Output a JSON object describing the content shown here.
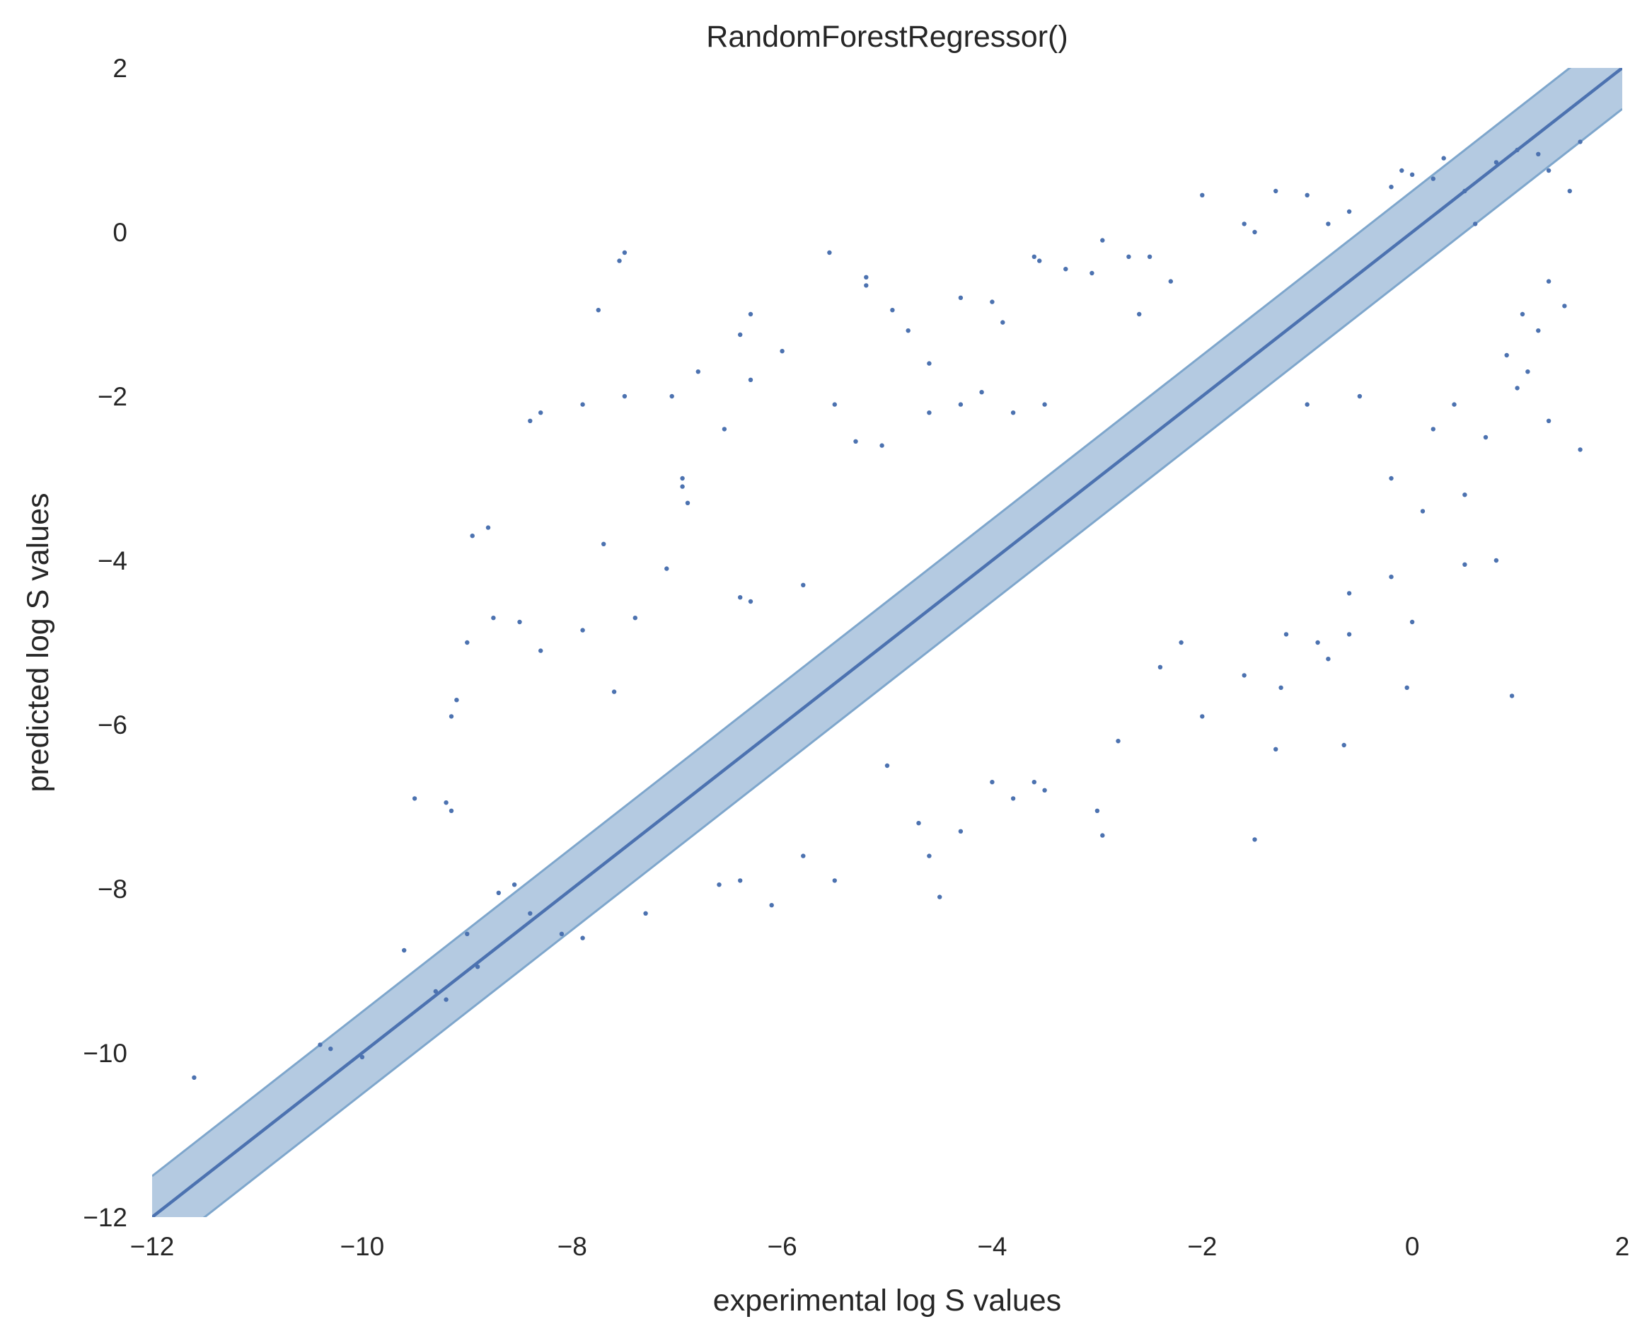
{
  "chart_data": {
    "type": "scatter",
    "title": "RandomForestRegressor()",
    "xlabel": "experimental log S values",
    "ylabel": "predicted log S values",
    "xlim": [
      -12,
      2
    ],
    "ylim": [
      -12,
      2
    ],
    "xticks": [
      -12,
      -10,
      -8,
      -6,
      -4,
      -2,
      0,
      2
    ],
    "yticks": [
      -12,
      -10,
      -8,
      -6,
      -4,
      -2,
      0,
      2
    ],
    "xtick_labels": [
      "−12",
      "−10",
      "−8",
      "−6",
      "−4",
      "−2",
      "0",
      "2"
    ],
    "ytick_labels": [
      "−12",
      "−10",
      "−8",
      "−6",
      "−4",
      "−2",
      "0",
      "2"
    ],
    "grid": false,
    "colors": {
      "points": "#4c72b0",
      "line": "#4c72b0",
      "band_fill": "#a7c1dc",
      "band_edge": "#7ea6cc"
    },
    "reference_line": {
      "slope": 1,
      "intercept": 0
    },
    "band": {
      "half_width": 0.5
    },
    "series": [
      {
        "points": [
          [
            -11.6,
            -10.3
          ],
          [
            -10.4,
            -9.9
          ],
          [
            -10.3,
            -9.95
          ],
          [
            -10.0,
            -10.05
          ],
          [
            -9.5,
            -6.9
          ],
          [
            -9.2,
            -6.95
          ],
          [
            -9.15,
            -7.05
          ],
          [
            -9.1,
            -5.7
          ],
          [
            -9.15,
            -5.9
          ],
          [
            -9.0,
            -5.0
          ],
          [
            -8.95,
            -3.7
          ],
          [
            -8.8,
            -3.6
          ],
          [
            -8.75,
            -4.7
          ],
          [
            -8.4,
            -2.3
          ],
          [
            -8.3,
            -2.2
          ],
          [
            -8.5,
            -4.75
          ],
          [
            -8.3,
            -5.1
          ],
          [
            -7.9,
            -2.1
          ],
          [
            -7.75,
            -0.95
          ],
          [
            -7.55,
            -0.35
          ],
          [
            -7.5,
            -0.25
          ],
          [
            -7.5,
            -2.0
          ],
          [
            -7.7,
            -3.8
          ],
          [
            -7.9,
            -4.85
          ],
          [
            -7.6,
            -5.6
          ],
          [
            -7.05,
            -2.0
          ],
          [
            -6.95,
            -3.0
          ],
          [
            -6.8,
            -1.7
          ],
          [
            -6.55,
            -2.4
          ],
          [
            -6.4,
            -1.25
          ],
          [
            -6.3,
            -1.0
          ],
          [
            -6.3,
            -1.8
          ],
          [
            -6.0,
            -1.45
          ],
          [
            -5.55,
            -0.25
          ],
          [
            -5.2,
            -0.55
          ],
          [
            -5.2,
            -0.65
          ],
          [
            -4.95,
            -0.95
          ],
          [
            -4.8,
            -1.2
          ],
          [
            -4.6,
            -1.6
          ],
          [
            -4.3,
            -0.8
          ],
          [
            -4.0,
            -0.85
          ],
          [
            -3.9,
            -1.1
          ],
          [
            -3.6,
            -0.3
          ],
          [
            -3.55,
            -0.35
          ],
          [
            -3.3,
            -0.45
          ],
          [
            -3.05,
            -0.5
          ],
          [
            -2.95,
            -0.1
          ],
          [
            -2.7,
            -0.3
          ],
          [
            -2.6,
            -1.0
          ],
          [
            -2.5,
            -0.3
          ],
          [
            -2.3,
            -0.6
          ],
          [
            -2.0,
            0.45
          ],
          [
            -1.6,
            0.1
          ],
          [
            -1.5,
            0.0
          ],
          [
            -1.3,
            0.5
          ],
          [
            -1.0,
            0.45
          ],
          [
            -0.8,
            0.1
          ],
          [
            -0.6,
            0.25
          ],
          [
            -0.2,
            0.55
          ],
          [
            -0.1,
            0.75
          ],
          [
            0.0,
            0.7
          ],
          [
            0.2,
            0.65
          ],
          [
            0.3,
            0.9
          ],
          [
            0.5,
            0.5
          ],
          [
            0.6,
            0.1
          ],
          [
            0.8,
            0.85
          ],
          [
            1.0,
            1.0
          ],
          [
            1.2,
            0.95
          ],
          [
            1.3,
            0.75
          ],
          [
            1.5,
            0.5
          ],
          [
            1.6,
            1.1
          ],
          [
            1.45,
            -0.9
          ],
          [
            1.3,
            -2.3
          ],
          [
            1.6,
            -2.65
          ],
          [
            1.05,
            -1.0
          ],
          [
            1.0,
            -1.9
          ],
          [
            0.8,
            -4.0
          ],
          [
            0.95,
            -5.65
          ],
          [
            0.5,
            -4.05
          ],
          [
            0.5,
            -3.2
          ],
          [
            0.1,
            -3.4
          ],
          [
            0.0,
            -4.75
          ],
          [
            -0.2,
            -4.2
          ],
          [
            -0.05,
            -5.55
          ],
          [
            -0.65,
            -6.25
          ],
          [
            -0.6,
            -4.4
          ],
          [
            -0.6,
            -4.9
          ],
          [
            -0.8,
            -5.2
          ],
          [
            -0.9,
            -5.0
          ],
          [
            -1.2,
            -4.9
          ],
          [
            -1.25,
            -5.55
          ],
          [
            -1.3,
            -6.3
          ],
          [
            -1.5,
            -7.4
          ],
          [
            -1.6,
            -5.4
          ],
          [
            -2.0,
            -5.9
          ],
          [
            -2.2,
            -5.0
          ],
          [
            -2.4,
            -5.3
          ],
          [
            -2.8,
            -6.2
          ],
          [
            -2.95,
            -7.35
          ],
          [
            -3.0,
            -7.05
          ],
          [
            -3.5,
            -6.8
          ],
          [
            -3.6,
            -6.7
          ],
          [
            -3.8,
            -6.9
          ],
          [
            -4.0,
            -6.7
          ],
          [
            -4.3,
            -7.3
          ],
          [
            -4.5,
            -8.1
          ],
          [
            -4.6,
            -7.6
          ],
          [
            -4.7,
            -7.2
          ],
          [
            -5.0,
            -6.5
          ],
          [
            -5.5,
            -7.9
          ],
          [
            -5.8,
            -7.6
          ],
          [
            -6.1,
            -8.2
          ],
          [
            -6.4,
            -7.9
          ],
          [
            -6.6,
            -7.95
          ],
          [
            -7.3,
            -8.3
          ],
          [
            -7.9,
            -8.6
          ],
          [
            -8.1,
            -8.55
          ],
          [
            -8.4,
            -8.3
          ],
          [
            -8.55,
            -7.95
          ],
          [
            -8.7,
            -8.05
          ],
          [
            -8.9,
            -8.95
          ],
          [
            -9.0,
            -8.55
          ],
          [
            -9.2,
            -9.35
          ],
          [
            -9.3,
            -9.25
          ],
          [
            -9.6,
            -8.75
          ],
          [
            -6.95,
            -3.1
          ],
          [
            -6.9,
            -3.3
          ],
          [
            -7.1,
            -4.1
          ],
          [
            -7.4,
            -4.7
          ],
          [
            -6.4,
            -4.45
          ],
          [
            -6.3,
            -4.5
          ],
          [
            -5.8,
            -4.3
          ],
          [
            -5.5,
            -2.1
          ],
          [
            -5.3,
            -2.55
          ],
          [
            -5.05,
            -2.6
          ],
          [
            -4.6,
            -2.2
          ],
          [
            -4.3,
            -2.1
          ],
          [
            -4.1,
            -1.95
          ],
          [
            -3.8,
            -2.2
          ],
          [
            -3.5,
            -2.1
          ],
          [
            -1.0,
            -2.1
          ],
          [
            -0.5,
            -2.0
          ],
          [
            -0.2,
            -3.0
          ],
          [
            0.2,
            -2.4
          ],
          [
            0.4,
            -2.1
          ],
          [
            0.7,
            -2.5
          ],
          [
            0.9,
            -1.5
          ],
          [
            1.1,
            -1.7
          ],
          [
            1.2,
            -1.2
          ],
          [
            1.3,
            -0.6
          ]
        ]
      }
    ]
  }
}
